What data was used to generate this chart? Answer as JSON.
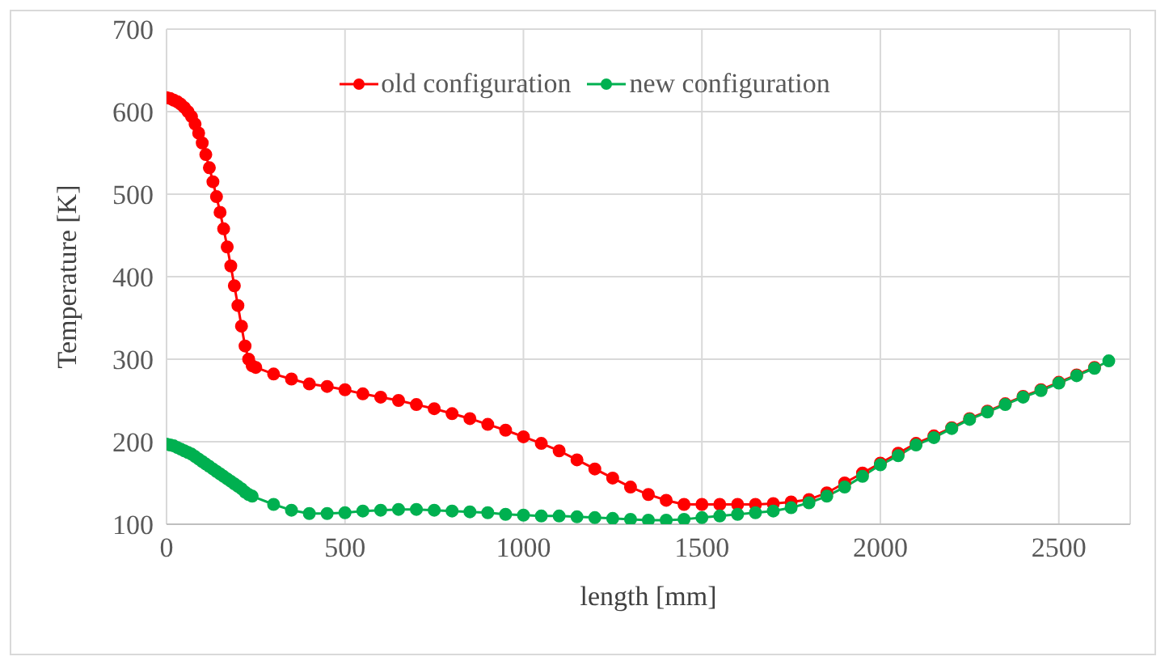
{
  "chart_data": {
    "type": "line",
    "xlabel": "length [mm]",
    "ylabel": "Temperature [K]",
    "xlim": [
      0,
      2700
    ],
    "xticks": [
      0,
      500,
      1000,
      1500,
      2000,
      2500
    ],
    "ylim": [
      100,
      700
    ],
    "yticks": [
      100,
      200,
      300,
      400,
      500,
      600,
      700
    ],
    "grid": true,
    "legend": "top",
    "marker": "circle",
    "line_style": "solid",
    "series": [
      {
        "name": "old configuration",
        "color": "#ff0000",
        "x": [
          0,
          10,
          20,
          30,
          40,
          50,
          60,
          70,
          80,
          90,
          100,
          110,
          120,
          130,
          140,
          150,
          160,
          170,
          180,
          190,
          200,
          210,
          220,
          230,
          240,
          250,
          300,
          350,
          400,
          450,
          500,
          550,
          600,
          650,
          700,
          750,
          800,
          850,
          900,
          950,
          1000,
          1050,
          1100,
          1150,
          1200,
          1250,
          1300,
          1350,
          1400,
          1450,
          1500,
          1550,
          1600,
          1650,
          1700,
          1750,
          1800,
          1850,
          1900,
          1950,
          2000,
          2050,
          2100,
          2150,
          2200,
          2250,
          2300,
          2350,
          2400,
          2450,
          2500,
          2550,
          2600
        ],
        "values": [
          617,
          616,
          614,
          612,
          609,
          605,
          600,
          594,
          585,
          574,
          562,
          548,
          532,
          515,
          497,
          478,
          458,
          436,
          413,
          389,
          365,
          340,
          316,
          300,
          292,
          290,
          282,
          276,
          270,
          267,
          263,
          258,
          254,
          250,
          245,
          240,
          234,
          228,
          221,
          214,
          206,
          198,
          189,
          178,
          167,
          156,
          145,
          136,
          129,
          124,
          124,
          124,
          124,
          124,
          125,
          127,
          130,
          138,
          150,
          162,
          174,
          186,
          198,
          207,
          217,
          228,
          237,
          246,
          255,
          263,
          272,
          281,
          290
        ]
      },
      {
        "name": "new configuration",
        "color": "#00b050",
        "x": [
          0,
          10,
          20,
          30,
          40,
          50,
          60,
          70,
          80,
          90,
          100,
          110,
          120,
          130,
          140,
          150,
          160,
          170,
          180,
          190,
          200,
          210,
          220,
          230,
          240,
          300,
          350,
          400,
          450,
          500,
          550,
          600,
          650,
          700,
          750,
          800,
          850,
          900,
          950,
          1000,
          1050,
          1100,
          1150,
          1200,
          1250,
          1300,
          1350,
          1400,
          1450,
          1500,
          1550,
          1600,
          1650,
          1700,
          1750,
          1800,
          1850,
          1900,
          1950,
          2000,
          2050,
          2100,
          2150,
          2200,
          2250,
          2300,
          2350,
          2400,
          2450,
          2500,
          2550,
          2600,
          2640
        ],
        "values": [
          197,
          196,
          195,
          193,
          191,
          189,
          187,
          185,
          182,
          179,
          176,
          173,
          170,
          167,
          164,
          161,
          158,
          155,
          152,
          149,
          146,
          143,
          139,
          136,
          134,
          124,
          117,
          113,
          113,
          114,
          116,
          117,
          118,
          118,
          117,
          116,
          115,
          114,
          112,
          111,
          110,
          110,
          109,
          108,
          107,
          106,
          105,
          105,
          106,
          108,
          110,
          112,
          114,
          116,
          120,
          126,
          134,
          145,
          158,
          172,
          183,
          196,
          205,
          216,
          227,
          236,
          245,
          254,
          262,
          271,
          280,
          289,
          298
        ]
      }
    ]
  }
}
